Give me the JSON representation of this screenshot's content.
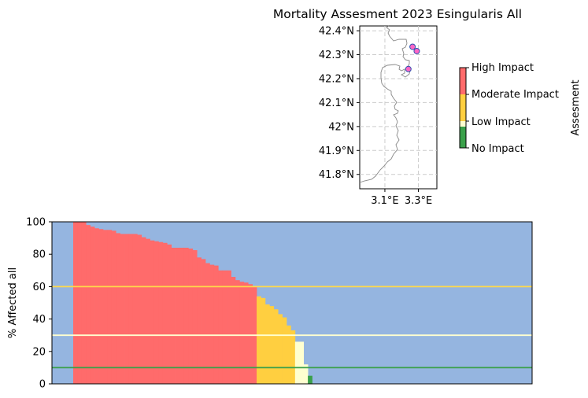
{
  "title": "Mortality Assesment 2023 Esingularis All",
  "colors": {
    "background": "#95b5e0",
    "high": "#ff6b6b",
    "moderate": "#ffcf40",
    "low": "#ffffd0",
    "none": "#3aa04a",
    "line_high": "#ffd94a",
    "line_low": "#ffffd0",
    "line_none": "#3aa04a",
    "coast": "#888888",
    "marker_fill": "#ff66c4",
    "marker_edge": "#3050b0"
  },
  "map": {
    "lat_ticks": [
      "42.4°N",
      "42.3°N",
      "42.2°N",
      "42.1°N",
      "42°N",
      "41.9°N",
      "41.8°N"
    ],
    "lon_ticks": [
      "3.1°E",
      "3.3°E"
    ],
    "sites": [
      {
        "lon": 3.265,
        "lat": 42.333
      },
      {
        "lon": 3.29,
        "lat": 42.315
      },
      {
        "lon": 3.24,
        "lat": 42.24
      }
    ]
  },
  "colorbar": {
    "label": "Assesment",
    "ticks": [
      "High Impact",
      "Moderate Impact",
      "Low Impact",
      "No Impact"
    ]
  },
  "chart_data": {
    "type": "bar",
    "ylabel": "% Affected all",
    "ylim": [
      0,
      100
    ],
    "yticks": [
      0,
      20,
      40,
      60,
      80,
      100
    ],
    "thresholds": [
      {
        "level": "High Impact",
        "value": 60
      },
      {
        "level": "Low Impact",
        "value": 30
      },
      {
        "level": "No Impact",
        "value": 10
      }
    ],
    "values": [
      100,
      100,
      100,
      98,
      97,
      96,
      95.5,
      95,
      95,
      94.5,
      93,
      92.5,
      92.5,
      92.5,
      92.5,
      92,
      90.5,
      89.5,
      88.5,
      88,
      87.5,
      87,
      86,
      84,
      84,
      84,
      84,
      83.5,
      82.5,
      78,
      77,
      74.5,
      73.5,
      73,
      70,
      70,
      70,
      66,
      64,
      63,
      62.5,
      61.5,
      60,
      54,
      53,
      49,
      48,
      46,
      43,
      41,
      36,
      33,
      26,
      26,
      12,
      5
    ]
  }
}
